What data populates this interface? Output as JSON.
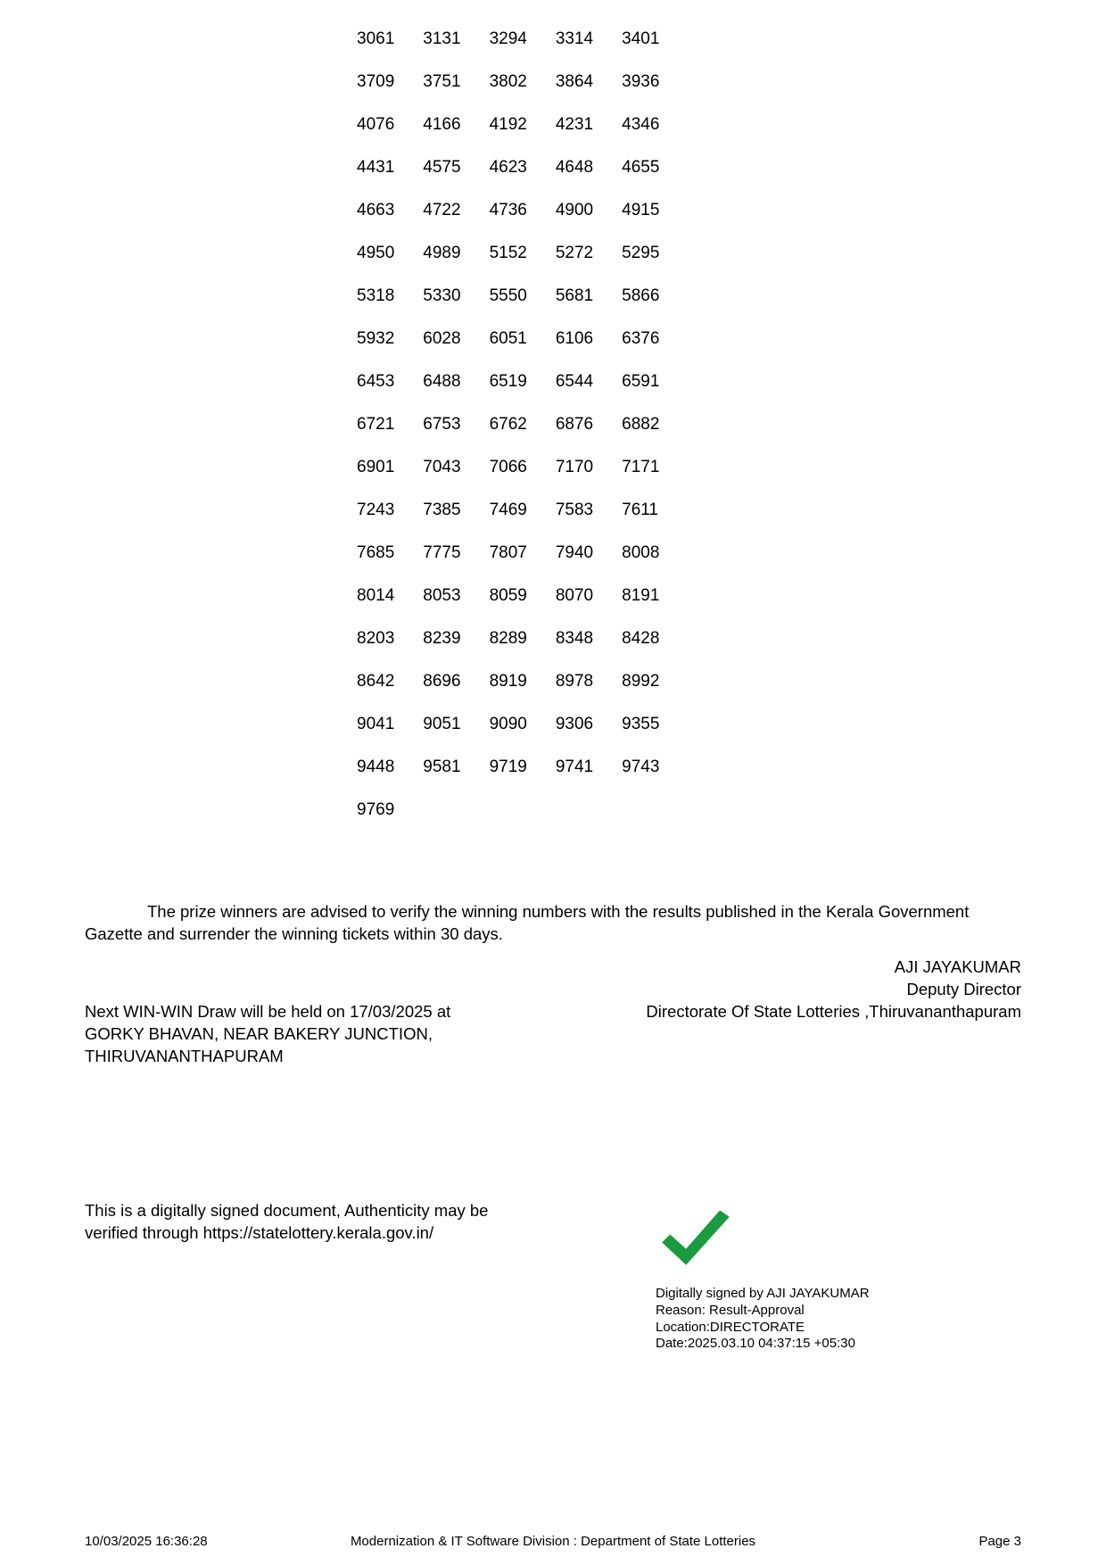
{
  "numbers_grid": {
    "rows": [
      [
        "3061",
        "3131",
        "3294",
        "3314",
        "3401"
      ],
      [
        "3709",
        "3751",
        "3802",
        "3864",
        "3936"
      ],
      [
        "4076",
        "4166",
        "4192",
        "4231",
        "4346"
      ],
      [
        "4431",
        "4575",
        "4623",
        "4648",
        "4655"
      ],
      [
        "4663",
        "4722",
        "4736",
        "4900",
        "4915"
      ],
      [
        "4950",
        "4989",
        "5152",
        "5272",
        "5295"
      ],
      [
        "5318",
        "5330",
        "5550",
        "5681",
        "5866"
      ],
      [
        "5932",
        "6028",
        "6051",
        "6106",
        "6376"
      ],
      [
        "6453",
        "6488",
        "6519",
        "6544",
        "6591"
      ],
      [
        "6721",
        "6753",
        "6762",
        "6876",
        "6882"
      ],
      [
        "6901",
        "7043",
        "7066",
        "7170",
        "7171"
      ],
      [
        "7243",
        "7385",
        "7469",
        "7583",
        "7611"
      ],
      [
        "7685",
        "7775",
        "7807",
        "7940",
        "8008"
      ],
      [
        "8014",
        "8053",
        "8059",
        "8070",
        "8191"
      ],
      [
        "8203",
        "8239",
        "8289",
        "8348",
        "8428"
      ],
      [
        "8642",
        "8696",
        "8919",
        "8978",
        "8992"
      ],
      [
        "9041",
        "9051",
        "9090",
        "9306",
        "9355"
      ],
      [
        "9448",
        "9581",
        "9719",
        "9741",
        "9743"
      ],
      [
        "9769",
        "",
        "",
        "",
        ""
      ]
    ],
    "font_size": 19,
    "text_color": "#000000"
  },
  "advisory_text": "The prize winners are advised to verify the winning numbers with the results published in the Kerala Government Gazette and surrender the winning tickets within 30 days.",
  "signoff": {
    "name": "AJI JAYAKUMAR",
    "title": "Deputy Director",
    "org": "Directorate Of State Lotteries ,Thiruvananthapuram"
  },
  "next_draw": {
    "line1": "Next WIN-WIN Draw will be held on 17/03/2025 at",
    "line2": "GORKY BHAVAN,  NEAR BAKERY JUNCTION,",
    "line3": "THIRUVANANTHAPURAM"
  },
  "digital_note": {
    "line1": "This is a digitally signed document, Authenticity may be",
    "line2": "verified through https://statelottery.kerala.gov.in/"
  },
  "signature_block": {
    "checkmark_color": "#1a9b3f",
    "line1": "Digitally signed by AJI JAYAKUMAR",
    "line2": "Reason: Result-Approval",
    "line3": "Location:DIRECTORATE",
    "line4": "Date:2025.03.10 04:37:15 +05:30"
  },
  "footer": {
    "left": "10/03/2025 16:36:28",
    "center": "Modernization & IT Software Division : Department of State Lotteries",
    "right": "Page 3"
  }
}
